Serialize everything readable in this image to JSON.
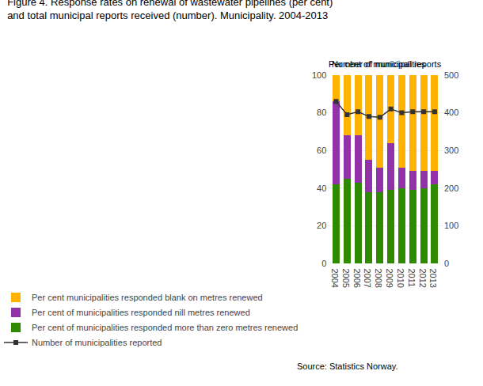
{
  "chart_data": {
    "type": "bar",
    "stacked": true,
    "title": [
      "Figure 4. Response rates on renewal of wastewater pipelines (per cent)",
      "and total municipal reports received (number). Municipality. 2004-2013"
    ],
    "ylabel": "Per cent of municipalities",
    "y2label": "Number of municipal reports",
    "annotations": [
      "Source: Statistics Norway."
    ],
    "categories": [
      2004,
      2005,
      2006,
      2007,
      2008,
      2009,
      2010,
      2011,
      2012,
      2013
    ],
    "series": [
      {
        "name": "Per cent of municipalities responded more than zero metres renewed",
        "type": "bar",
        "color": "#2e8b00",
        "values": [
          42,
          45,
          43,
          38,
          38,
          39,
          40,
          39,
          40,
          42
        ]
      },
      {
        "name": "Per cent of municipalities responded nill metres renewed",
        "type": "bar",
        "color": "#9132a8",
        "values": [
          44,
          23,
          25,
          17,
          13,
          25,
          11,
          10,
          9,
          7
        ]
      },
      {
        "name": "Per cent municipalities responded blank on metres renewed",
        "type": "bar",
        "color": "#ffb300",
        "values": [
          14,
          32,
          32,
          45,
          49,
          36,
          49,
          51,
          51,
          51
        ]
      },
      {
        "name": "Number of municipalities reported",
        "type": "line",
        "axis": "y2",
        "color": "#333333",
        "marker": "square",
        "line_style": "solid",
        "values": [
          430,
          395,
          403,
          390,
          388,
          410,
          400,
          403,
          403,
          403
        ]
      }
    ],
    "ylim": [
      0,
      100
    ],
    "yticks": [
      0,
      20,
      40,
      60,
      80,
      100
    ],
    "y2lim": [
      0,
      500
    ],
    "y2ticks": [
      0,
      100,
      200,
      300,
      400,
      500
    ],
    "grid": true,
    "legend": "bottom"
  }
}
